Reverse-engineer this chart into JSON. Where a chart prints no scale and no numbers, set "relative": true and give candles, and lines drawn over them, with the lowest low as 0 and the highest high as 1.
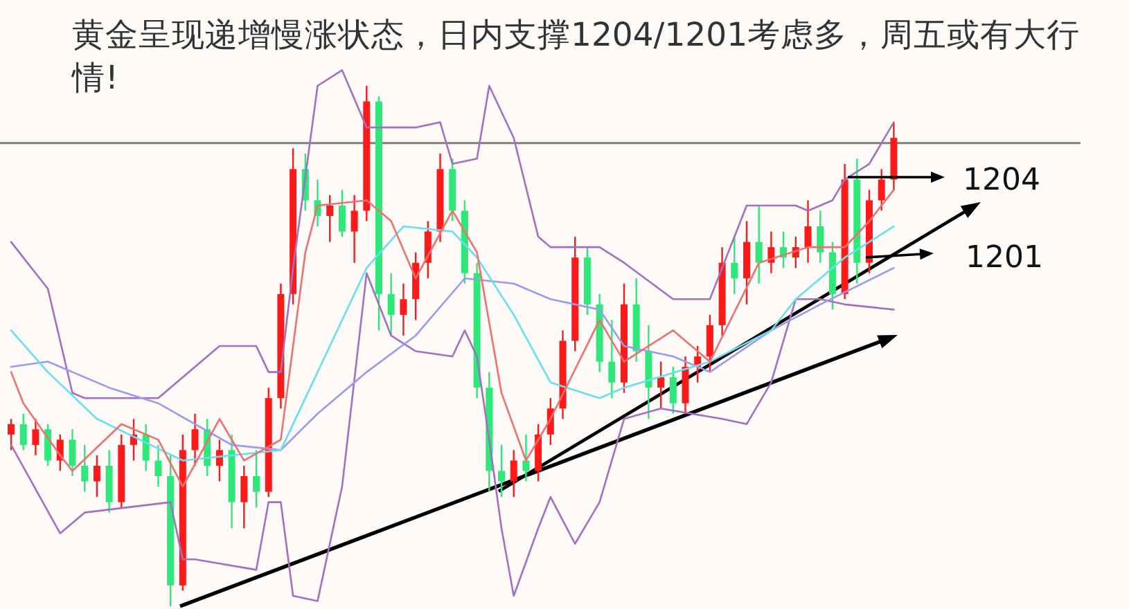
{
  "chart_data": {
    "type": "candlestick",
    "relative": true,
    "title": "黄金呈现递增慢涨状态，日内支撑1204/1201考虑多，周五或有大行情!",
    "categories": [
      null,
      null,
      null,
      null,
      null,
      null,
      null,
      null,
      null,
      null,
      null,
      null,
      null,
      null,
      null,
      null,
      null,
      null,
      null,
      null,
      null,
      null,
      null,
      null,
      null,
      null,
      null,
      null,
      null,
      null,
      null,
      null,
      null,
      null,
      null,
      null,
      null,
      null,
      null,
      null,
      null,
      null,
      null,
      null,
      null,
      null,
      null,
      null,
      null,
      null,
      null,
      null,
      null,
      null,
      null,
      null,
      null,
      null,
      null,
      null,
      null,
      null,
      null,
      null,
      null,
      null,
      null,
      null,
      null,
      null,
      null,
      null,
      null
    ],
    "ohlc": [
      [
        0.33,
        0.36,
        0.3,
        0.35
      ],
      [
        0.35,
        0.37,
        0.3,
        0.31
      ],
      [
        0.31,
        0.36,
        0.29,
        0.34
      ],
      [
        0.34,
        0.35,
        0.27,
        0.28
      ],
      [
        0.28,
        0.33,
        0.26,
        0.32
      ],
      [
        0.32,
        0.34,
        0.25,
        0.27
      ],
      [
        0.27,
        0.31,
        0.22,
        0.24
      ],
      [
        0.24,
        0.29,
        0.21,
        0.27
      ],
      [
        0.27,
        0.3,
        0.18,
        0.2
      ],
      [
        0.2,
        0.33,
        0.19,
        0.31
      ],
      [
        0.31,
        0.36,
        0.28,
        0.33
      ],
      [
        0.33,
        0.35,
        0.26,
        0.28
      ],
      [
        0.28,
        0.31,
        0.23,
        0.25
      ],
      [
        0.25,
        0.29,
        0.0,
        0.04
      ],
      [
        0.04,
        0.33,
        0.03,
        0.3
      ],
      [
        0.3,
        0.37,
        0.27,
        0.34
      ],
      [
        0.34,
        0.36,
        0.25,
        0.27
      ],
      [
        0.27,
        0.32,
        0.24,
        0.3
      ],
      [
        0.3,
        0.33,
        0.15,
        0.2
      ],
      [
        0.2,
        0.27,
        0.15,
        0.25
      ],
      [
        0.25,
        0.3,
        0.19,
        0.22
      ],
      [
        0.22,
        0.42,
        0.21,
        0.4
      ],
      [
        0.4,
        0.62,
        0.38,
        0.6
      ],
      [
        0.6,
        0.88,
        0.58,
        0.84
      ],
      [
        0.84,
        0.87,
        0.76,
        0.78
      ],
      [
        0.78,
        0.82,
        0.73,
        0.75
      ],
      [
        0.75,
        0.79,
        0.7,
        0.77
      ],
      [
        0.77,
        0.8,
        0.71,
        0.72
      ],
      [
        0.72,
        0.79,
        0.66,
        0.76
      ],
      [
        0.76,
        1.0,
        0.74,
        0.97
      ],
      [
        0.97,
        0.98,
        0.53,
        0.6
      ],
      [
        0.6,
        0.64,
        0.52,
        0.56
      ],
      [
        0.56,
        0.62,
        0.52,
        0.59
      ],
      [
        0.59,
        0.68,
        0.55,
        0.66
      ],
      [
        0.66,
        0.74,
        0.63,
        0.72
      ],
      [
        0.72,
        0.87,
        0.7,
        0.84
      ],
      [
        0.84,
        0.86,
        0.74,
        0.76
      ],
      [
        0.76,
        0.78,
        0.62,
        0.64
      ],
      [
        0.64,
        0.66,
        0.4,
        0.42
      ],
      [
        0.42,
        0.45,
        0.22,
        0.26
      ],
      [
        0.26,
        0.31,
        0.21,
        0.24
      ],
      [
        0.24,
        0.3,
        0.21,
        0.28
      ],
      [
        0.28,
        0.33,
        0.24,
        0.26
      ],
      [
        0.26,
        0.35,
        0.24,
        0.33
      ],
      [
        0.33,
        0.4,
        0.31,
        0.38
      ],
      [
        0.38,
        0.53,
        0.36,
        0.51
      ],
      [
        0.51,
        0.71,
        0.49,
        0.67
      ],
      [
        0.67,
        0.69,
        0.56,
        0.58
      ],
      [
        0.58,
        0.6,
        0.45,
        0.47
      ],
      [
        0.47,
        0.55,
        0.4,
        0.43
      ],
      [
        0.43,
        0.62,
        0.41,
        0.58
      ],
      [
        0.58,
        0.63,
        0.47,
        0.49
      ],
      [
        0.49,
        0.54,
        0.36,
        0.42
      ],
      [
        0.42,
        0.47,
        0.38,
        0.44
      ],
      [
        0.44,
        0.46,
        0.37,
        0.39
      ],
      [
        0.39,
        0.48,
        0.37,
        0.46
      ],
      [
        0.46,
        0.5,
        0.43,
        0.48
      ],
      [
        0.48,
        0.56,
        0.45,
        0.54
      ],
      [
        0.54,
        0.69,
        0.52,
        0.66
      ],
      [
        0.66,
        0.71,
        0.6,
        0.63
      ],
      [
        0.63,
        0.74,
        0.58,
        0.7
      ],
      [
        0.7,
        0.77,
        0.62,
        0.66
      ],
      [
        0.66,
        0.72,
        0.64,
        0.69
      ],
      [
        0.69,
        0.72,
        0.65,
        0.67
      ],
      [
        0.67,
        0.71,
        0.65,
        0.69
      ],
      [
        0.69,
        0.78,
        0.66,
        0.73
      ],
      [
        0.73,
        0.76,
        0.66,
        0.68
      ],
      [
        0.68,
        0.7,
        0.57,
        0.6
      ],
      [
        0.6,
        0.85,
        0.59,
        0.82
      ],
      [
        0.82,
        0.86,
        0.62,
        0.66
      ],
      [
        0.66,
        0.8,
        0.64,
        0.78
      ],
      [
        0.78,
        0.84,
        0.76,
        0.82
      ],
      [
        0.82,
        0.93,
        0.8,
        0.9
      ]
    ],
    "series": [
      {
        "type": "line",
        "color": "#a36fc0",
        "values": [
          0.7,
          null,
          null,
          0.61,
          null,
          0.41,
          0.4,
          null,
          null,
          null,
          null,
          null,
          0.4,
          0.42,
          null,
          null,
          null,
          0.5,
          null,
          null,
          0.5,
          0.45,
          0.45,
          0.65,
          null,
          1.0,
          null,
          1.03,
          null,
          0.92,
          null,
          null,
          null,
          0.92,
          null,
          0.93,
          0.85,
          null,
          0.86,
          1.0,
          null,
          0.9,
          null,
          0.71,
          0.69,
          null,
          null,
          null,
          0.69,
          null,
          0.66,
          null,
          null,
          null,
          0.59,
          null,
          null,
          0.59,
          null,
          null,
          0.77,
          null,
          null,
          null,
          0.77,
          0.76,
          null,
          0.78,
          0.82,
          null,
          0.85,
          null,
          0.93
        ]
      },
      {
        "type": "line",
        "color": "#a36fc0",
        "values": [
          0.31,
          null,
          null,
          null,
          0.14,
          null,
          0.18,
          null,
          null,
          null,
          null,
          null,
          null,
          0.2,
          0.09,
          0.09,
          null,
          null,
          null,
          null,
          0.07,
          0.2,
          0.2,
          0.02,
          null,
          0.01,
          null,
          0.23,
          null,
          0.64,
          null,
          0.52,
          null,
          0.49,
          null,
          null,
          0.48,
          0.53,
          0.48,
          0.32,
          0.15,
          0.02,
          null,
          0.15,
          0.21,
          null,
          0.12,
          null,
          0.2,
          null,
          0.36,
          null,
          null,
          0.38,
          null,
          null,
          null,
          null,
          0.36,
          null,
          0.35,
          null,
          0.43,
          null,
          0.59,
          null,
          0.59,
          null,
          0.58,
          null,
          null,
          null,
          0.57
        ]
      },
      {
        "type": "line",
        "color": "#9a9af0",
        "values": [
          0.46,
          null,
          null,
          0.47,
          null,
          null,
          null,
          null,
          0.42,
          null,
          null,
          null,
          0.39,
          null,
          null,
          null,
          null,
          null,
          0.31,
          null,
          null,
          null,
          0.3,
          null,
          null,
          0.37,
          null,
          null,
          null,
          0.45,
          null,
          null,
          null,
          0.52,
          null,
          null,
          null,
          0.63,
          null,
          null,
          null,
          0.62,
          null,
          null,
          0.59,
          null,
          null,
          null,
          0.57,
          null,
          0.5,
          null,
          null,
          null,
          0.48,
          null,
          null,
          0.45,
          null,
          null,
          null,
          null,
          0.53,
          null,
          null,
          null,
          0.58,
          null,
          null,
          null,
          null,
          null,
          0.65
        ]
      },
      {
        "type": "line",
        "color": "#66e0f0",
        "values": [
          0.53,
          null,
          null,
          0.45,
          null,
          null,
          null,
          0.36,
          null,
          null,
          null,
          null,
          null,
          null,
          0.28,
          null,
          null,
          null,
          null,
          null,
          null,
          null,
          0.3,
          null,
          null,
          0.45,
          null,
          null,
          null,
          0.65,
          null,
          null,
          0.73,
          null,
          null,
          null,
          0.72,
          null,
          0.67,
          null,
          null,
          0.56,
          null,
          null,
          0.43,
          null,
          null,
          null,
          0.4,
          null,
          0.42,
          null,
          null,
          null,
          null,
          null,
          null,
          0.47,
          null,
          null,
          null,
          null,
          0.53,
          null,
          0.59,
          null,
          null,
          null,
          0.67,
          null,
          null,
          null,
          0.73
        ]
      },
      {
        "type": "line",
        "color": "#f07070",
        "values": [
          0.45,
          0.39,
          null,
          null,
          0.29,
          0.26,
          null,
          null,
          null,
          0.35,
          null,
          null,
          0.32,
          null,
          0.23,
          null,
          null,
          0.36,
          null,
          0.28,
          null,
          null,
          0.32,
          null,
          0.68,
          0.77,
          null,
          null,
          null,
          0.78,
          null,
          0.74,
          null,
          0.63,
          null,
          null,
          0.76,
          null,
          0.68,
          null,
          0.41,
          null,
          0.28,
          null,
          0.36,
          null,
          null,
          null,
          0.55,
          null,
          0.47,
          null,
          null,
          null,
          0.53,
          null,
          null,
          0.47,
          null,
          null,
          null,
          0.66,
          null,
          null,
          null,
          0.69,
          null,
          null,
          0.69,
          null,
          0.74,
          null,
          0.8
        ]
      }
    ],
    "ref_lines": [
      {
        "axis": "y",
        "value": 0.89,
        "color": "#808080"
      }
    ],
    "annotations": [
      "1204",
      "1201"
    ]
  }
}
